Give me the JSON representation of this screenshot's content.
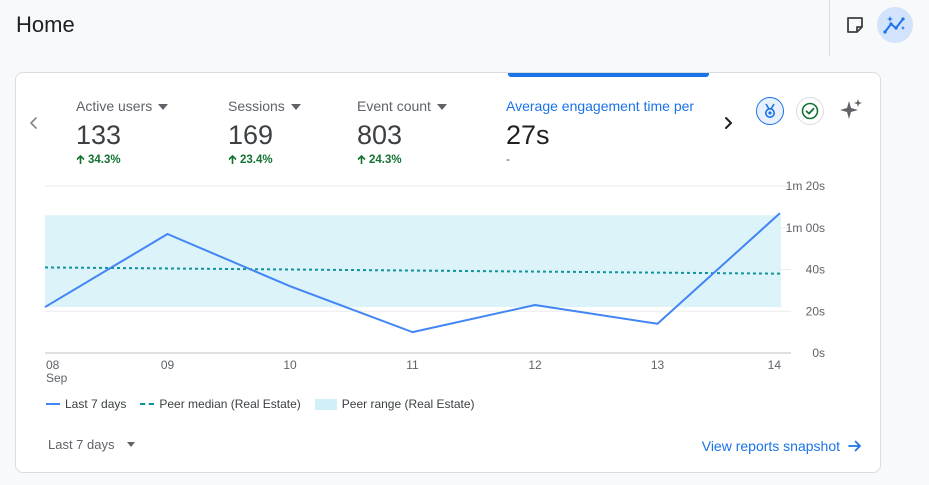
{
  "page": {
    "title": "Home"
  },
  "header_icons": {
    "notes": "sticky-note-icon",
    "insights": "insights-icon"
  },
  "metrics": [
    {
      "label": "Active users",
      "value": "133",
      "change": "34.3%"
    },
    {
      "label": "Sessions",
      "value": "169",
      "change": "23.4%"
    },
    {
      "label": "Event count",
      "value": "803",
      "change": "24.3%"
    },
    {
      "label": "Average engagement time per",
      "value": "27s",
      "change": "-"
    }
  ],
  "chart_data": {
    "type": "line",
    "categories": [
      "08",
      "09",
      "10",
      "11",
      "12",
      "13",
      "14"
    ],
    "first_category_sublabel": "Sep",
    "series": [
      {
        "name": "Last 7 days",
        "values": [
          22,
          57,
          32,
          10,
          23,
          14,
          67
        ]
      },
      {
        "name": "Peer median (Real Estate)",
        "values": [
          41,
          40.5,
          40,
          39.5,
          39,
          38.5,
          38
        ]
      }
    ],
    "band": {
      "name": "Peer range (Real Estate)",
      "low": 22,
      "high": 66
    },
    "y_ticks": [
      "0s",
      "20s",
      "40s",
      "1m 00s",
      "1m 20s"
    ],
    "ylim": [
      0,
      80
    ]
  },
  "legend": {
    "last7": "Last 7 days",
    "median": "Peer median (Real Estate)",
    "range": "Peer range (Real Estate)"
  },
  "footer": {
    "date_range": "Last 7 days",
    "view_link": "View reports snapshot"
  },
  "colors": {
    "accent": "#1a73e8",
    "line": "#4285f4",
    "median": "#12939a",
    "band": "#d0eff6",
    "positive": "#137333"
  }
}
